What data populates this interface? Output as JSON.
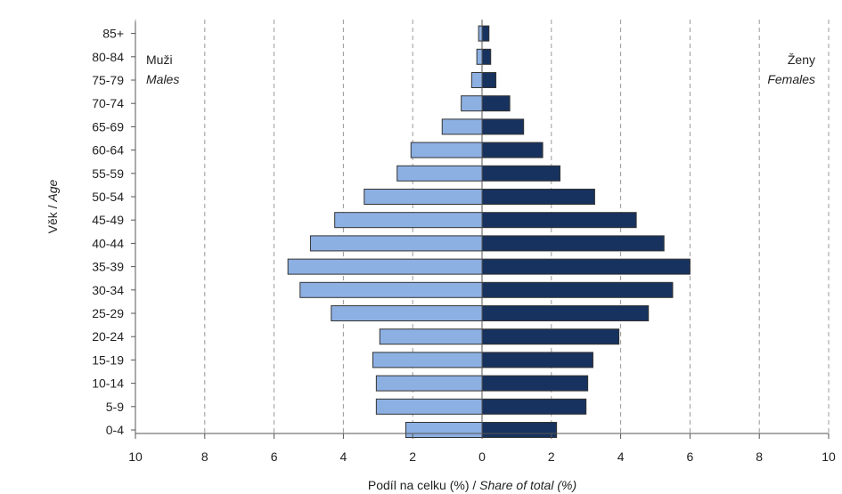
{
  "chart_data": {
    "type": "bar",
    "orientation": "horizontal",
    "layout": "population-pyramid",
    "categories": [
      "85+",
      "80-84",
      "75-79",
      "70-74",
      "65-69",
      "60-64",
      "55-59",
      "50-54",
      "45-49",
      "40-44",
      "35-39",
      "30-34",
      "25-29",
      "20-24",
      "15-19",
      "10-14",
      "5-9",
      "0-4"
    ],
    "series": [
      {
        "name": "Muži",
        "name_en": "Males",
        "side": "left",
        "color": "#8db0e3",
        "values": [
          0.1,
          0.15,
          0.3,
          0.6,
          1.15,
          2.05,
          2.45,
          3.4,
          4.25,
          4.95,
          5.6,
          5.25,
          4.35,
          2.95,
          3.15,
          3.05,
          3.05,
          2.2
        ]
      },
      {
        "name": "Ženy",
        "name_en": "Females",
        "side": "right",
        "color": "#17325e",
        "values": [
          0.2,
          0.25,
          0.4,
          0.8,
          1.2,
          1.75,
          2.25,
          3.25,
          4.45,
          5.25,
          6.0,
          5.5,
          4.8,
          3.95,
          3.2,
          3.05,
          3.0,
          2.15
        ]
      }
    ],
    "xlim": [
      -10,
      10
    ],
    "x_ticks": [
      10,
      8,
      6,
      4,
      2,
      0,
      2,
      4,
      6,
      8,
      10
    ],
    "xlabel": "Podíl na celku (%) / ",
    "xlabel_en": "Share of total (%)",
    "ylabel": "Věk  /  ",
    "ylabel_en": "Age",
    "grid": "vertical-dashed",
    "grid_color": "#9a9a9a",
    "bar_border_color": "#333333"
  }
}
